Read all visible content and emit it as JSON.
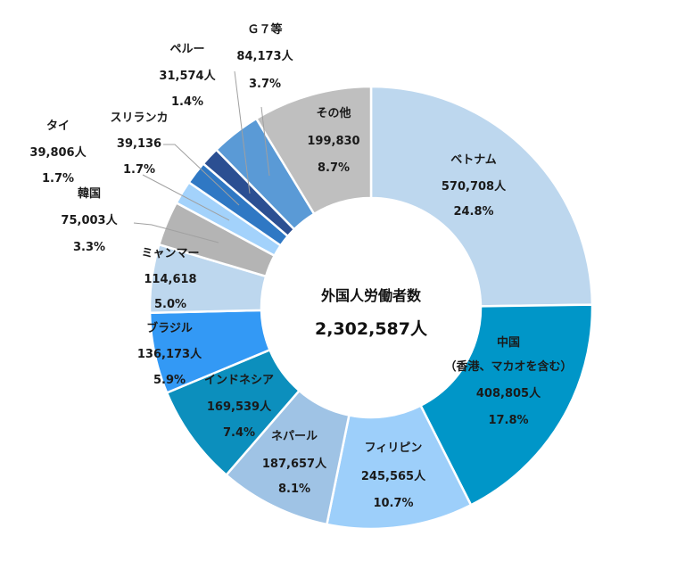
{
  "chart_data": {
    "type": "pie",
    "subtype": "donut",
    "center_title": "外国人労働者数",
    "center_value": "2,302,587人",
    "slices": [
      {
        "name": "ベトナム",
        "sub": "",
        "value": 570708,
        "value_label": "570,708人",
        "percent": 24.8,
        "percent_label": "24.8%",
        "color": "#bdd7ee"
      },
      {
        "name": "中国",
        "sub": "（香港、マカオを含む）",
        "value": 408805,
        "value_label": "408,805人",
        "percent": 17.8,
        "percent_label": "17.8%",
        "color": "#0096c8"
      },
      {
        "name": "フィリピン",
        "sub": "",
        "value": 245565,
        "value_label": "245,565人",
        "percent": 10.7,
        "percent_label": "10.7%",
        "color": "#9dcffa"
      },
      {
        "name": "ネパール",
        "sub": "",
        "value": 187657,
        "value_label": "187,657人",
        "percent": 8.1,
        "percent_label": "8.1%",
        "color": "#9fc3e5"
      },
      {
        "name": "インドネシア",
        "sub": "",
        "value": 169539,
        "value_label": "169,539人",
        "percent": 7.4,
        "percent_label": "7.4%",
        "color": "#0c8fbd"
      },
      {
        "name": "ブラジル",
        "sub": "",
        "value": 136173,
        "value_label": "136,173人",
        "percent": 5.9,
        "percent_label": "5.9%",
        "color": "#3399f5"
      },
      {
        "name": "ミャンマー",
        "sub": "",
        "value": 114618,
        "value_label": "114,618",
        "percent": 5.0,
        "percent_label": "5.0%",
        "color": "#bdd7ee"
      },
      {
        "name": "韓国",
        "sub": "",
        "value": 75003,
        "value_label": "75,003人",
        "percent": 3.3,
        "percent_label": "3.3%",
        "color": "#b4b4b4"
      },
      {
        "name": "タイ",
        "sub": "",
        "value": 39806,
        "value_label": "39,806人",
        "percent": 1.7,
        "percent_label": "1.7%",
        "color": "#a3d2fb"
      },
      {
        "name": "スリランカ",
        "sub": "",
        "value": 39136,
        "value_label": "39,136",
        "percent": 1.7,
        "percent_label": "1.7%",
        "color": "#2f78c4"
      },
      {
        "name": "ペルー",
        "sub": "",
        "value": 31574,
        "value_label": "31,574人",
        "percent": 1.4,
        "percent_label": "1.4%",
        "color": "#2b4f92"
      },
      {
        "name": "Ｇ７等",
        "sub": "",
        "value": 84173,
        "value_label": "84,173人",
        "percent": 3.7,
        "percent_label": "3.7%",
        "color": "#5a9ad6"
      },
      {
        "name": "その他",
        "sub": "",
        "value": 199830,
        "value_label": "199,830",
        "percent": 8.7,
        "percent_label": "8.7%",
        "color": "#bfbfbf"
      }
    ]
  }
}
